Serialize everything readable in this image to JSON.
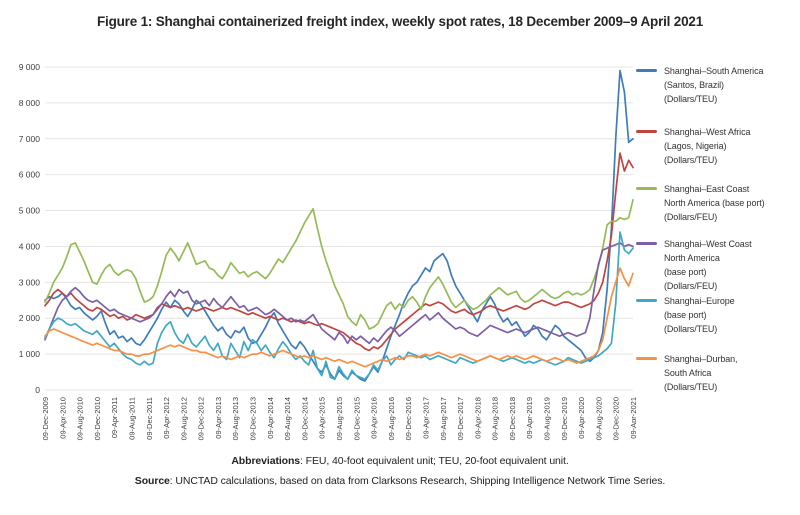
{
  "title": "Figure 1: Shanghai containerized freight index, weekly spot rates, 18 December 2009–9 April 2021",
  "footer": {
    "abbreviations_label": "Abbreviations",
    "abbreviations_text": ": FEU, 40-foot equivalent unit; TEU, 20-foot equivalent unit.",
    "source_label": "Source",
    "source_text": ": UNCTAD calculations, based on data from Clarksons Research, Shipping Intelligence Network Time Series."
  },
  "chart_data": {
    "type": "line",
    "title": "Shanghai containerized freight index, weekly spot rates, 18 December 2009–9 April 2021",
    "grid": "horizontal-only",
    "legend_position": "right",
    "x_unit": "monthly samples of weekly series, Dec-2009 to Apr-2021",
    "y_axis": {
      "min": 0,
      "max": 9000,
      "tick_step": 1000,
      "tick_labels": [
        "0",
        "1 000",
        "2 000",
        "3 000",
        "4 000",
        "5 000",
        "6 000",
        "7 000",
        "8 000",
        "9 000"
      ]
    },
    "x_axis": {
      "tick_every_months": 4,
      "tick_labels": [
        "09-Dec-2009",
        "09-Apr-2010",
        "09-Aug-2010",
        "09-Dec-2010",
        "09-Apr-2011",
        "09-Aug-2011",
        "09-Dec-2011",
        "09-Apr-2012",
        "09-Aug-2012",
        "09-Dec-2012",
        "09-Apr-2013",
        "09-Aug-2013",
        "09-Dec-2013",
        "09-Apr-2014",
        "09-Aug-2014",
        "09-Dec-2014",
        "09-Apr-2015",
        "09-Aug-2015",
        "09-Dec-2015",
        "09-Apr-2016",
        "09-Aug-2016",
        "09-Dec-2016",
        "09-Apr-2017",
        "09-Aug-2017",
        "09-Dec-2017",
        "09-Apr-2018",
        "09-Aug-2018",
        "09-Dec-2018",
        "09-Apr-2019",
        "09-Aug-2019",
        "09-Dec-2019",
        "09-Apr-2020",
        "09-Aug-2020",
        "09-Dec-2020",
        "09-Apr-2021"
      ]
    },
    "series": [
      {
        "id": "south-america",
        "name": "Shanghai–South America (Santos, Brazil) (Dollars/TEU)",
        "legend_lines": [
          "Shanghai–South America",
          "(Santos, Brazil)",
          "(Dollars/TEU)"
        ],
        "color": "#3E7CBD",
        "values": [
          2500,
          2600,
          2550,
          2600,
          2700,
          2550,
          2350,
          2250,
          2300,
          2150,
          2050,
          1950,
          2050,
          2200,
          1850,
          1550,
          1650,
          1450,
          1500,
          1350,
          1450,
          1300,
          1250,
          1400,
          1600,
          1800,
          2000,
          2250,
          2450,
          2300,
          2500,
          2400,
          2200,
          2050,
          2250,
          2500,
          2400,
          2200,
          2000,
          1800,
          1650,
          1750,
          1550,
          1450,
          1650,
          1600,
          1750,
          1450,
          1300,
          1350,
          1550,
          1750,
          2000,
          2150,
          1850,
          1650,
          1450,
          1250,
          1150,
          1350,
          1200,
          1000,
          800,
          600,
          500,
          700,
          450,
          300,
          550,
          400,
          300,
          500,
          400,
          300,
          250,
          450,
          650,
          500,
          800,
          1150,
          1500,
          1800,
          2100,
          2450,
          2700,
          2900,
          3000,
          3200,
          3400,
          3300,
          3600,
          3700,
          3800,
          3600,
          3200,
          2900,
          2700,
          2500,
          2300,
          2100,
          1900,
          2200,
          2400,
          2600,
          2400,
          2100,
          1900,
          2000,
          1800,
          1900,
          1700,
          1500,
          1600,
          1800,
          1700,
          1500,
          1400,
          1600,
          1800,
          1700,
          1500,
          1400,
          1300,
          1200,
          1100,
          900,
          800,
          900,
          1100,
          1600,
          2800,
          4500,
          7000,
          8900,
          8300,
          6900,
          7000
        ]
      },
      {
        "id": "west-africa",
        "name": "Shanghai–West Africa (Lagos, Nigeria) (Dollars/TEU)",
        "legend_lines": [
          "Shanghai–West Africa",
          "(Lagos, Nigeria)",
          "(Dollars/TEU)"
        ],
        "color": "#C0443F",
        "values": [
          2350,
          2500,
          2700,
          2800,
          2700,
          2600,
          2700,
          2550,
          2450,
          2350,
          2250,
          2200,
          2300,
          2250,
          2150,
          2050,
          2100,
          2000,
          2050,
          1950,
          2000,
          2100,
          2050,
          2000,
          2050,
          2100,
          2300,
          2400,
          2350,
          2300,
          2350,
          2300,
          2250,
          2300,
          2250,
          2200,
          2250,
          2300,
          2250,
          2200,
          2250,
          2300,
          2250,
          2300,
          2250,
          2200,
          2150,
          2100,
          2150,
          2100,
          2050,
          2000,
          2050,
          2000,
          1950,
          2000,
          1950,
          1900,
          1950,
          1900,
          1850,
          1900,
          1850,
          1800,
          1850,
          1800,
          1750,
          1700,
          1650,
          1600,
          1500,
          1400,
          1300,
          1250,
          1150,
          1100,
          1200,
          1150,
          1250,
          1400,
          1550,
          1700,
          1800,
          1900,
          2000,
          2100,
          2200,
          2300,
          2400,
          2350,
          2400,
          2450,
          2400,
          2300,
          2200,
          2150,
          2200,
          2250,
          2150,
          2100,
          2150,
          2200,
          2300,
          2350,
          2300,
          2250,
          2200,
          2250,
          2300,
          2350,
          2300,
          2250,
          2300,
          2400,
          2450,
          2500,
          2450,
          2400,
          2350,
          2400,
          2450,
          2450,
          2400,
          2350,
          2300,
          2350,
          2400,
          2500,
          2700,
          3000,
          3600,
          4300,
          5500,
          6600,
          6100,
          6400,
          6200
        ]
      },
      {
        "id": "east-coast-north-america",
        "name": "Shanghai–East Coast North America (base port) (Dollars/FEU)",
        "legend_lines": [
          "Shanghai–East Coast",
          "North America (base port)",
          "(Dollars/FEU)"
        ],
        "color": "#95BB57",
        "values": [
          2450,
          2700,
          3000,
          3200,
          3400,
          3700,
          4050,
          4100,
          3850,
          3600,
          3300,
          3000,
          2950,
          3200,
          3400,
          3500,
          3300,
          3200,
          3300,
          3350,
          3300,
          3100,
          2750,
          2450,
          2500,
          2600,
          2900,
          3300,
          3750,
          3950,
          3800,
          3600,
          3850,
          4100,
          3800,
          3500,
          3550,
          3600,
          3400,
          3350,
          3200,
          3100,
          3300,
          3550,
          3400,
          3250,
          3300,
          3150,
          3250,
          3300,
          3200,
          3100,
          3250,
          3450,
          3650,
          3550,
          3750,
          3950,
          4150,
          4400,
          4650,
          4850,
          5050,
          4500,
          4000,
          3600,
          3250,
          2900,
          2650,
          2400,
          2050,
          1900,
          1800,
          2100,
          1950,
          1700,
          1750,
          1850,
          2100,
          2350,
          2450,
          2250,
          2400,
          2300,
          2500,
          2600,
          2450,
          2250,
          2600,
          2850,
          3000,
          3150,
          2950,
          2700,
          2450,
          2300,
          2400,
          2500,
          2350,
          2250,
          2300,
          2400,
          2500,
          2650,
          2750,
          2850,
          2750,
          2650,
          2700,
          2750,
          2550,
          2450,
          2500,
          2600,
          2700,
          2800,
          2700,
          2600,
          2550,
          2600,
          2700,
          2750,
          2650,
          2700,
          2650,
          2700,
          2800,
          3100,
          3450,
          3950,
          4600,
          4700,
          4700,
          4800,
          4750,
          4800,
          5300
        ]
      },
      {
        "id": "west-coast-north-america",
        "name": "Shanghai–West Coast North America (base port) (Dollars/FEU)",
        "legend_lines": [
          "Shanghai–West Coast",
          "North America",
          "(base port)",
          "(Dollars/FEU)"
        ],
        "color": "#7C5FA6",
        "values": [
          1400,
          1700,
          2000,
          2300,
          2500,
          2600,
          2750,
          2850,
          2750,
          2600,
          2500,
          2450,
          2500,
          2400,
          2300,
          2200,
          2250,
          2150,
          2100,
          2050,
          2000,
          1950,
          1900,
          1950,
          2000,
          2100,
          2250,
          2400,
          2600,
          2750,
          2600,
          2800,
          2700,
          2750,
          2500,
          2400,
          2450,
          2500,
          2350,
          2550,
          2400,
          2300,
          2450,
          2600,
          2450,
          2300,
          2350,
          2200,
          2250,
          2300,
          2200,
          2100,
          2150,
          2250,
          2150,
          2050,
          1950,
          2000,
          1900,
          1950,
          1900,
          2000,
          2100,
          1900,
          1700,
          1600,
          1500,
          1400,
          1600,
          1500,
          1300,
          1500,
          1400,
          1500,
          1400,
          1300,
          1450,
          1350,
          1500,
          1650,
          1750,
          1650,
          1500,
          1600,
          1700,
          1800,
          1900,
          2000,
          2100,
          1950,
          2050,
          2150,
          2000,
          1900,
          1800,
          1700,
          1750,
          1700,
          1600,
          1550,
          1500,
          1600,
          1700,
          1800,
          1750,
          1700,
          1650,
          1600,
          1650,
          1700,
          1650,
          1600,
          1650,
          1700,
          1750,
          1700,
          1650,
          1600,
          1550,
          1500,
          1550,
          1600,
          1550,
          1500,
          1550,
          1600,
          2000,
          2800,
          3500,
          3900,
          3950,
          4000,
          4050,
          4100,
          4000,
          4050,
          4000
        ]
      },
      {
        "id": "europe",
        "name": "Shanghai–Europe (base port) (Dollars/TEU)",
        "legend_lines": [
          "Shanghai–Europe",
          "(base port)",
          "(Dollars/TEU)"
        ],
        "color": "#3FA8C6",
        "values": [
          1450,
          1700,
          1900,
          2000,
          1950,
          1850,
          1800,
          1850,
          1750,
          1650,
          1600,
          1550,
          1650,
          1500,
          1350,
          1200,
          1300,
          1150,
          1000,
          900,
          850,
          750,
          700,
          800,
          700,
          750,
          1300,
          1600,
          1800,
          1900,
          1600,
          1400,
          1300,
          1550,
          1300,
          1200,
          1350,
          1500,
          1250,
          1100,
          1300,
          950,
          850,
          1300,
          1100,
          900,
          1350,
          1100,
          1400,
          1300,
          1100,
          1250,
          1050,
          900,
          1150,
          1350,
          1200,
          1000,
          850,
          950,
          800,
          700,
          1100,
          600,
          400,
          800,
          350,
          300,
          650,
          450,
          300,
          550,
          400,
          350,
          300,
          450,
          700,
          550,
          800,
          950,
          700,
          850,
          950,
          850,
          1050,
          1000,
          950,
          900,
          950,
          850,
          900,
          950,
          900,
          850,
          800,
          750,
          900,
          850,
          800,
          750,
          800,
          850,
          900,
          950,
          900,
          850,
          800,
          850,
          900,
          850,
          800,
          750,
          800,
          750,
          800,
          850,
          800,
          750,
          700,
          750,
          800,
          900,
          850,
          800,
          750,
          800,
          850,
          900,
          950,
          1050,
          1150,
          1300,
          2400,
          4400,
          3900,
          3800,
          3950
        ]
      },
      {
        "id": "durban",
        "name": "Shanghai–Durban, South Africa (Dollars/TEU)",
        "legend_lines": [
          "Shanghai–Durban,",
          "South Africa",
          "(Dollars/TEU)"
        ],
        "color": "#F79044",
        "values": [
          1500,
          1650,
          1700,
          1650,
          1600,
          1550,
          1500,
          1450,
          1400,
          1350,
          1300,
          1250,
          1300,
          1250,
          1200,
          1150,
          1100,
          1100,
          1050,
          1000,
          1000,
          950,
          950,
          1000,
          1000,
          1050,
          1100,
          1150,
          1200,
          1250,
          1200,
          1250,
          1200,
          1150,
          1100,
          1100,
          1050,
          1050,
          1000,
          950,
          900,
          950,
          900,
          850,
          900,
          950,
          900,
          950,
          1000,
          1000,
          1050,
          1000,
          950,
          1000,
          1050,
          1100,
          1050,
          1000,
          950,
          900,
          950,
          900,
          950,
          900,
          850,
          900,
          850,
          800,
          850,
          800,
          750,
          800,
          750,
          700,
          650,
          700,
          750,
          800,
          850,
          800,
          850,
          900,
          850,
          900,
          950,
          950,
          900,
          950,
          1000,
          950,
          1000,
          1050,
          1000,
          950,
          900,
          950,
          1000,
          950,
          900,
          850,
          800,
          850,
          900,
          950,
          900,
          850,
          900,
          950,
          900,
          950,
          900,
          850,
          900,
          950,
          900,
          850,
          800,
          850,
          900,
          850,
          800,
          850,
          800,
          750,
          800,
          850,
          900,
          950,
          1100,
          1400,
          2000,
          2600,
          3000,
          3400,
          3100,
          2900,
          3250
        ]
      }
    ]
  }
}
